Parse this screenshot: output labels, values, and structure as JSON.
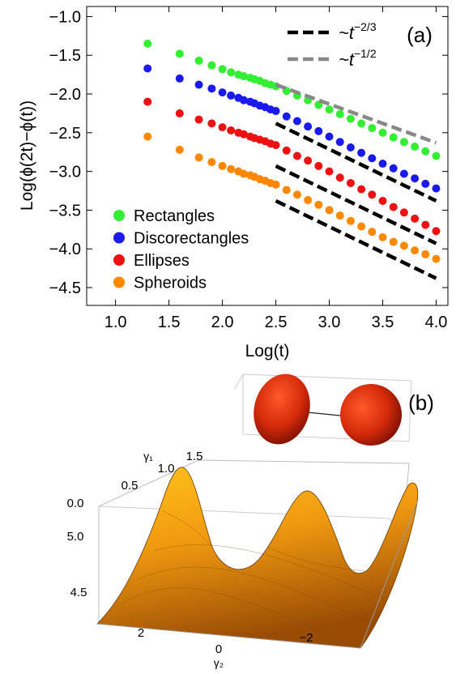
{
  "chart_data": {
    "type": "scatter",
    "panel_label": "(a)",
    "x_label": "Log(t)",
    "y_label": "Log(ϕ(2t)−ϕ(t))",
    "xlim": [
      0.73,
      4.11
    ],
    "ylim": [
      -4.73,
      -0.87
    ],
    "xticks": [
      {
        "value": 1,
        "label": "1.0"
      },
      {
        "value": 1.5,
        "label": "1.5"
      },
      {
        "value": 2,
        "label": "2.0"
      },
      {
        "value": 2.5,
        "label": "2.5"
      },
      {
        "value": 3,
        "label": "3.0"
      },
      {
        "value": 3.5,
        "label": "3.5"
      },
      {
        "value": 4,
        "label": "4.0"
      }
    ],
    "yticks": [
      {
        "value": -1,
        "label": "−1.0"
      },
      {
        "value": -1.5,
        "label": "−1.5"
      },
      {
        "value": -2,
        "label": "−2.0"
      },
      {
        "value": -2.5,
        "label": "−2.5"
      },
      {
        "value": -3,
        "label": "−3.0"
      },
      {
        "value": -3.5,
        "label": "−3.5"
      },
      {
        "value": -4,
        "label": "−4.0"
      },
      {
        "value": -4.5,
        "label": "−4.5"
      }
    ],
    "x": [
      1.3,
      1.6,
      1.78,
      1.9,
      2.0,
      2.08,
      2.15,
      2.2,
      2.26,
      2.3,
      2.35,
      2.4,
      2.45,
      2.5,
      2.6,
      2.7,
      2.8,
      2.9,
      3.0,
      3.1,
      3.2,
      3.3,
      3.4,
      3.5,
      3.6,
      3.7,
      3.8,
      3.9,
      4.0
    ],
    "series": [
      {
        "name": "Rectangles",
        "color": "#33ee33",
        "values": [
          -1.35,
          -1.48,
          -1.57,
          -1.63,
          -1.68,
          -1.72,
          -1.75,
          -1.77,
          -1.79,
          -1.81,
          -1.83,
          -1.86,
          -1.88,
          -1.9,
          -1.96,
          -2.02,
          -2.08,
          -2.14,
          -2.2,
          -2.26,
          -2.32,
          -2.38,
          -2.44,
          -2.5,
          -2.56,
          -2.62,
          -2.68,
          -2.74,
          -2.8
        ]
      },
      {
        "name": "Discorectangles",
        "color": "#1a1aee",
        "values": [
          -1.67,
          -1.8,
          -1.88,
          -1.93,
          -1.98,
          -2.02,
          -2.05,
          -2.08,
          -2.1,
          -2.12,
          -2.15,
          -2.17,
          -2.2,
          -2.22,
          -2.29,
          -2.35,
          -2.42,
          -2.48,
          -2.55,
          -2.62,
          -2.69,
          -2.76,
          -2.83,
          -2.9,
          -2.96,
          -3.03,
          -3.09,
          -3.16,
          -3.22
        ]
      },
      {
        "name": "Ellipses",
        "color": "#ee1111",
        "values": [
          -2.1,
          -2.25,
          -2.33,
          -2.38,
          -2.43,
          -2.47,
          -2.5,
          -2.52,
          -2.55,
          -2.57,
          -2.59,
          -2.61,
          -2.64,
          -2.66,
          -2.73,
          -2.8,
          -2.86,
          -2.93,
          -3.0,
          -3.08,
          -3.15,
          -3.23,
          -3.3,
          -3.38,
          -3.46,
          -3.53,
          -3.61,
          -3.69,
          -3.77
        ]
      },
      {
        "name": "Spheroids",
        "color": "#ff8800",
        "values": [
          -2.55,
          -2.72,
          -2.82,
          -2.88,
          -2.93,
          -2.97,
          -3.0,
          -3.03,
          -3.05,
          -3.07,
          -3.1,
          -3.12,
          -3.15,
          -3.17,
          -3.24,
          -3.3,
          -3.37,
          -3.43,
          -3.5,
          -3.57,
          -3.64,
          -3.71,
          -3.78,
          -3.85,
          -3.91,
          -3.96,
          -4.02,
          -4.07,
          -4.13
        ]
      }
    ],
    "reference_lines": [
      {
        "x": [
          2.5,
          4.0
        ],
        "values": [
          -1.88,
          -2.63
        ],
        "color": "#888888"
      },
      {
        "x": [
          2.5,
          4.0
        ],
        "values": [
          -2.38,
          -3.38
        ],
        "color": "#000000"
      },
      {
        "x": [
          2.5,
          4.0
        ],
        "values": [
          -2.93,
          -3.93
        ],
        "color": "#000000"
      },
      {
        "x": [
          2.5,
          4.0
        ],
        "values": [
          -3.38,
          -4.38
        ],
        "color": "#000000"
      }
    ],
    "reference_legend": [
      {
        "text": "~t",
        "exponent": "−2/3",
        "color": "#000000"
      },
      {
        "text": "~t",
        "exponent": "−1/2",
        "color": "#888888"
      }
    ]
  },
  "panel_b": {
    "panel_label": "(b)",
    "gamma1_label": "γ₁",
    "gamma2_label": "γ₂",
    "gamma1_ticks": [
      "1.5",
      "1.0",
      "0.5",
      "0.0"
    ],
    "z_ticks": [
      "5.0",
      "4.5"
    ],
    "gamma2_ticks": [
      "2",
      "0",
      "−2"
    ]
  }
}
